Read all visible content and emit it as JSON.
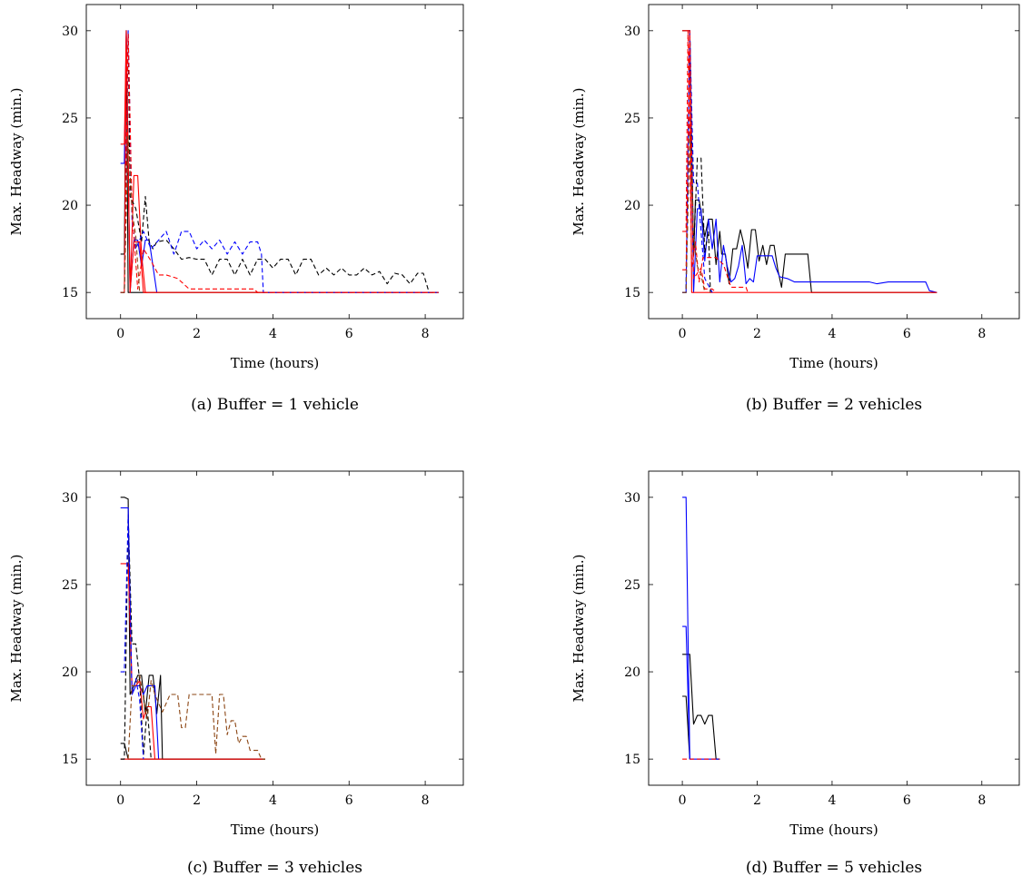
{
  "chart_data": [
    {
      "id": "a",
      "type": "line",
      "caption": "(a) Buffer = 1 vehicle",
      "xlabel": "Time (hours)",
      "ylabel": "Max. Headway (min.)",
      "xlim": [
        -0.9,
        9.0
      ],
      "ylim": [
        13.5,
        31.5
      ],
      "xticks": [
        0,
        2,
        4,
        6,
        8
      ],
      "yticks": [
        15,
        20,
        25,
        30
      ],
      "grid": false,
      "series": [
        {
          "color": "#000000",
          "dash": "solid",
          "x": [
            0,
            0.1,
            0.15,
            0.2,
            8.3
          ],
          "y": [
            17.2,
            17.2,
            30,
            15,
            15
          ]
        },
        {
          "color": "#0000ff",
          "dash": "solid",
          "x": [
            0,
            0.1,
            0.15,
            0.25,
            0.35,
            0.45,
            0.55,
            0.65,
            0.75,
            0.85,
            0.95
          ],
          "y": [
            22.4,
            22.4,
            30,
            15,
            18,
            18,
            16.5,
            18,
            18,
            16.5,
            15
          ]
        },
        {
          "color": "#ff0000",
          "dash": "solid",
          "x": [
            0,
            0.1,
            0.15,
            0.25,
            0.35,
            0.45,
            0.55,
            0.65,
            0.75,
            8.3
          ],
          "y": [
            23.5,
            23.5,
            30,
            15,
            21.7,
            21.7,
            17.2,
            15,
            15,
            15
          ]
        },
        {
          "color": "#ff0000",
          "dash": "solid",
          "x": [
            0,
            0.1,
            0.15,
            0.25,
            0.35,
            0.5,
            0.6,
            0.7
          ],
          "y": [
            15,
            15,
            29.7,
            15,
            17.9,
            17.9,
            15,
            15
          ]
        },
        {
          "color": "#000000",
          "dash": "dashed",
          "x": [
            0,
            0.1,
            0.2,
            0.25,
            0.4,
            0.55,
            0.65,
            0.75,
            0.85,
            0.95,
            1.2,
            1.4,
            1.6,
            1.8,
            2.0,
            2.2,
            2.4,
            2.6,
            2.8,
            3.0,
            3.2,
            3.4,
            3.6,
            3.8,
            4.0,
            4.2,
            4.4,
            4.6,
            4.8,
            5.0,
            5.2,
            5.4,
            5.6,
            5.8,
            6.0,
            6.2,
            6.4,
            6.6,
            6.8,
            7.0,
            7.2,
            7.4,
            7.6,
            7.8,
            7.95,
            8.1,
            8.2,
            8.35
          ],
          "y": [
            15,
            15,
            29.8,
            20.5,
            19.8,
            17.9,
            20.5,
            17.9,
            17.5,
            17.9,
            18,
            17.5,
            16.9,
            17,
            16.9,
            16.9,
            16,
            16.9,
            16.9,
            16,
            16.9,
            16,
            16.9,
            16.9,
            16.4,
            16.9,
            16.9,
            16,
            16.9,
            16.9,
            16,
            16.4,
            16,
            16.4,
            16,
            16,
            16.4,
            16,
            16.2,
            15.5,
            16.1,
            16,
            15.5,
            16.1,
            16.1,
            15,
            15,
            15
          ]
        },
        {
          "color": "#0000ff",
          "dash": "dashed",
          "x": [
            0,
            0.1,
            0.2,
            0.3,
            0.4,
            0.6,
            0.8,
            1.0,
            1.2,
            1.4,
            1.6,
            1.8,
            2.0,
            2.2,
            2.4,
            2.6,
            2.8,
            3.0,
            3.2,
            3.4,
            3.6,
            3.7,
            3.75,
            8.35
          ],
          "y": [
            15,
            15,
            30,
            19.2,
            17.5,
            18.5,
            17.5,
            18,
            18.5,
            17.2,
            18.5,
            18.5,
            17.5,
            18,
            17.5,
            18,
            17.2,
            17.9,
            17.2,
            17.9,
            17.9,
            17.2,
            15,
            15
          ]
        },
        {
          "color": "#ff0000",
          "dash": "dashed",
          "x": [
            0,
            0.1,
            0.2,
            0.3,
            0.45,
            0.6,
            0.8,
            1.0,
            1.2,
            1.5,
            1.8,
            2.0,
            2.5,
            3.0,
            3.5,
            3.6,
            3.65,
            8.35
          ],
          "y": [
            15,
            15,
            29.8,
            19.7,
            15.2,
            17.5,
            16.8,
            16,
            16,
            15.8,
            15.2,
            15.2,
            15.2,
            15.2,
            15.2,
            15,
            15,
            15
          ]
        },
        {
          "color": "#8b4513",
          "dash": "dashed",
          "x": [
            0,
            0.1,
            0.2,
            0.3,
            0.4,
            0.5
          ],
          "y": [
            15,
            15,
            24,
            19.7,
            18.2,
            15
          ]
        }
      ]
    },
    {
      "id": "b",
      "type": "line",
      "caption": "(b) Buffer = 2 vehicles",
      "xlabel": "Time (hours)",
      "ylabel": "Max. Headway (min.)",
      "xlim": [
        -0.9,
        9.0
      ],
      "ylim": [
        13.5,
        31.5
      ],
      "xticks": [
        0,
        2,
        4,
        6,
        8
      ],
      "yticks": [
        15,
        20,
        25,
        30
      ],
      "grid": false,
      "series": [
        {
          "color": "#000000",
          "dash": "solid",
          "x": [
            0,
            0.1,
            0.2,
            0.3,
            0.35,
            0.45,
            0.6,
            0.7,
            0.8,
            0.9,
            1.0,
            1.05,
            1.15,
            1.25,
            1.35,
            1.45,
            1.55,
            1.65,
            1.75,
            1.85,
            1.95,
            2.05,
            2.15,
            2.25,
            2.35,
            2.45,
            2.55,
            2.65,
            2.75,
            3.35,
            3.45,
            6.8
          ],
          "y": [
            30,
            30,
            30,
            17.1,
            20.3,
            20.3,
            18.2,
            19.2,
            19.2,
            16.6,
            18.5,
            17.2,
            17.2,
            15.5,
            17.5,
            17.5,
            18.6,
            17.7,
            16.4,
            18.6,
            18.6,
            16.8,
            17.7,
            16.6,
            17.7,
            17.7,
            16.3,
            15.3,
            17.2,
            17.2,
            15,
            15
          ]
        },
        {
          "color": "#0000ff",
          "dash": "solid",
          "x": [
            0,
            0.1,
            0.2,
            0.3,
            0.4,
            0.5,
            0.6,
            0.7,
            0.8,
            0.9,
            1.0,
            1.1,
            1.2,
            1.3,
            1.4,
            1.5,
            1.6,
            1.7,
            1.8,
            1.9,
            2.0,
            2.2,
            2.4,
            2.5,
            2.6,
            2.8,
            3.0,
            3.5,
            4.0,
            5.0,
            5.2,
            5.5,
            6.0,
            6.5,
            6.6,
            6.8
          ],
          "y": [
            15,
            15,
            30,
            15,
            19.8,
            19.8,
            16.8,
            19.2,
            17.5,
            19.2,
            15.6,
            17.7,
            16.5,
            15.6,
            15.8,
            16.5,
            17.7,
            15.5,
            15.8,
            15.6,
            17.1,
            17.1,
            17.1,
            16.4,
            15.9,
            15.8,
            15.6,
            15.6,
            15.6,
            15.6,
            15.5,
            15.6,
            15.6,
            15.6,
            15.1,
            15
          ]
        },
        {
          "color": "#ff0000",
          "dash": "solid",
          "x": [
            0,
            0.1,
            0.2,
            0.25,
            6.8
          ],
          "y": [
            30,
            30,
            30,
            15,
            15
          ]
        },
        {
          "color": "#000000",
          "dash": "dashed",
          "x": [
            0,
            0.1,
            0.2,
            0.3,
            0.4,
            0.5,
            0.6,
            0.7,
            0.75
          ],
          "y": [
            15,
            15,
            30,
            17.2,
            22.7,
            22.7,
            17.3,
            18.5,
            15
          ]
        },
        {
          "color": "#0000ff",
          "dash": "dashed",
          "x": [
            0,
            0.1,
            0.2,
            0.3,
            0.4,
            0.5,
            0.6,
            0.8
          ],
          "y": [
            15,
            15,
            30,
            21.3,
            21.3,
            18.5,
            15.8,
            15
          ]
        },
        {
          "color": "#ff0000",
          "dash": "dashed",
          "x": [
            0,
            0.1,
            0.15,
            0.25,
            0.35,
            0.45,
            0.55,
            0.7,
            0.9,
            1.1,
            1.3,
            1.5,
            1.7,
            1.75
          ],
          "y": [
            18.5,
            18.5,
            30,
            16.4,
            17.9,
            15.6,
            17,
            17,
            17,
            16.6,
            15.3,
            15.3,
            15.3,
            15
          ]
        },
        {
          "color": "#ff0000",
          "dash": "dashed",
          "x": [
            0,
            0.1,
            0.2,
            0.3,
            0.5,
            0.6,
            0.8,
            0.9
          ],
          "y": [
            16.3,
            16.3,
            30,
            15.8,
            16.4,
            15.2,
            15.2,
            15
          ]
        },
        {
          "color": "#8b4513",
          "dash": "dashed",
          "x": [
            0,
            0.1,
            0.2,
            0.3,
            0.4,
            0.5,
            0.6
          ],
          "y": [
            15,
            15,
            24,
            18.2,
            16.5,
            16,
            15
          ]
        }
      ]
    },
    {
      "id": "c",
      "type": "line",
      "caption": "(c) Buffer = 3 vehicles",
      "xlabel": "Time (hours)",
      "ylabel": "Max. Headway (min.)",
      "xlim": [
        -0.9,
        9.0
      ],
      "ylim": [
        13.5,
        31.5
      ],
      "xticks": [
        0,
        2,
        4,
        6,
        8
      ],
      "yticks": [
        15,
        20,
        25,
        30
      ],
      "grid": false,
      "series": [
        {
          "color": "#000000",
          "dash": "solid",
          "x": [
            0,
            0.1,
            0.2,
            0.25,
            0.35,
            0.45,
            0.55,
            0.65,
            0.75,
            0.85,
            0.95,
            1.05,
            1.1,
            3.8
          ],
          "y": [
            30,
            30,
            29.9,
            18.7,
            19.2,
            19.8,
            19.8,
            17.6,
            19.8,
            19.8,
            17.6,
            19.8,
            15,
            15
          ]
        },
        {
          "color": "#000000",
          "dash": "solid",
          "x": [
            0,
            0.1,
            0.2,
            3.8
          ],
          "y": [
            15.9,
            15.9,
            15,
            15
          ]
        },
        {
          "color": "#0000ff",
          "dash": "solid",
          "x": [
            0,
            0.1,
            0.2,
            0.3,
            0.4,
            0.5,
            0.6,
            0.7,
            0.8,
            0.9,
            1.0
          ],
          "y": [
            29.4,
            29.4,
            29.4,
            18.7,
            19.2,
            19.2,
            18.7,
            19.2,
            19.2,
            19.2,
            15
          ]
        },
        {
          "color": "#ff0000",
          "dash": "solid",
          "x": [
            0,
            0.1,
            0.2,
            0.3,
            0.4,
            0.5,
            0.6,
            0.7,
            0.8,
            0.9
          ],
          "y": [
            26.2,
            26.2,
            26.2,
            19.2,
            19.2,
            19.5,
            17.3,
            18,
            18,
            15
          ]
        },
        {
          "color": "#ff0000",
          "dash": "solid",
          "x": [
            0,
            0.1,
            0.2,
            3.8
          ],
          "y": [
            15,
            15,
            15,
            15
          ]
        },
        {
          "color": "#000000",
          "dash": "dashed",
          "x": [
            0,
            0.1,
            0.2,
            0.3,
            0.4,
            0.5,
            0.6,
            0.7,
            0.8
          ],
          "y": [
            15,
            15,
            29,
            21.6,
            21.6,
            19.5,
            15.2,
            18,
            15
          ]
        },
        {
          "color": "#0000ff",
          "dash": "dashed",
          "x": [
            0,
            0.1,
            0.2,
            0.3,
            0.4,
            0.5,
            0.6
          ],
          "y": [
            20,
            20,
            29,
            18.7,
            19.6,
            18.4,
            15
          ]
        },
        {
          "color": "#8b4513",
          "dash": "dashed",
          "x": [
            0.2,
            0.3,
            0.4,
            0.5,
            0.6,
            0.7,
            0.8,
            0.9,
            1.0,
            1.1,
            1.3,
            1.5,
            1.6,
            1.7,
            1.8,
            1.9,
            2.0,
            2.3,
            2.4,
            2.5,
            2.6,
            2.7,
            2.8,
            2.9,
            3.0,
            3.1,
            3.2,
            3.3,
            3.4,
            3.6,
            3.7,
            3.8
          ],
          "y": [
            15,
            19.2,
            19.2,
            19.8,
            18.5,
            17.3,
            19.5,
            18.7,
            18.2,
            17.7,
            18.7,
            18.7,
            16.8,
            16.8,
            18.7,
            18.7,
            18.7,
            18.7,
            18.7,
            15.3,
            18.7,
            18.7,
            16.4,
            17.2,
            17.2,
            15.9,
            16.3,
            16.3,
            15.5,
            15.5,
            15,
            15
          ]
        }
      ]
    },
    {
      "id": "d",
      "type": "line",
      "caption": "(d) Buffer = 5 vehicles",
      "xlabel": "Time (hours)",
      "ylabel": "Max. Headway (min.)",
      "xlim": [
        -0.9,
        9.0
      ],
      "ylim": [
        13.5,
        31.5
      ],
      "xticks": [
        0,
        2,
        4,
        6,
        8
      ],
      "yticks": [
        15,
        20,
        25,
        30
      ],
      "grid": false,
      "series": [
        {
          "color": "#000000",
          "dash": "solid",
          "x": [
            0,
            0.1,
            0.2,
            0.3,
            0.4,
            0.5,
            0.6,
            0.7,
            0.8,
            0.9,
            1.0
          ],
          "y": [
            21,
            21,
            21,
            17,
            17.5,
            17.5,
            17,
            17.5,
            17.5,
            15,
            15
          ]
        },
        {
          "color": "#000000",
          "dash": "solid",
          "x": [
            0,
            0.1,
            0.2
          ],
          "y": [
            18.6,
            18.6,
            15
          ]
        },
        {
          "color": "#0000ff",
          "dash": "solid",
          "x": [
            0,
            0.1,
            0.2,
            1.0
          ],
          "y": [
            30,
            30,
            15,
            15
          ]
        },
        {
          "color": "#0000ff",
          "dash": "solid",
          "x": [
            0,
            0.1,
            0.2
          ],
          "y": [
            22.6,
            22.6,
            15
          ]
        },
        {
          "color": "#ff0000",
          "dash": "dashed",
          "x": [
            0,
            0.1,
            0.2,
            1.0
          ],
          "y": [
            15,
            15,
            15,
            15
          ]
        }
      ]
    }
  ]
}
